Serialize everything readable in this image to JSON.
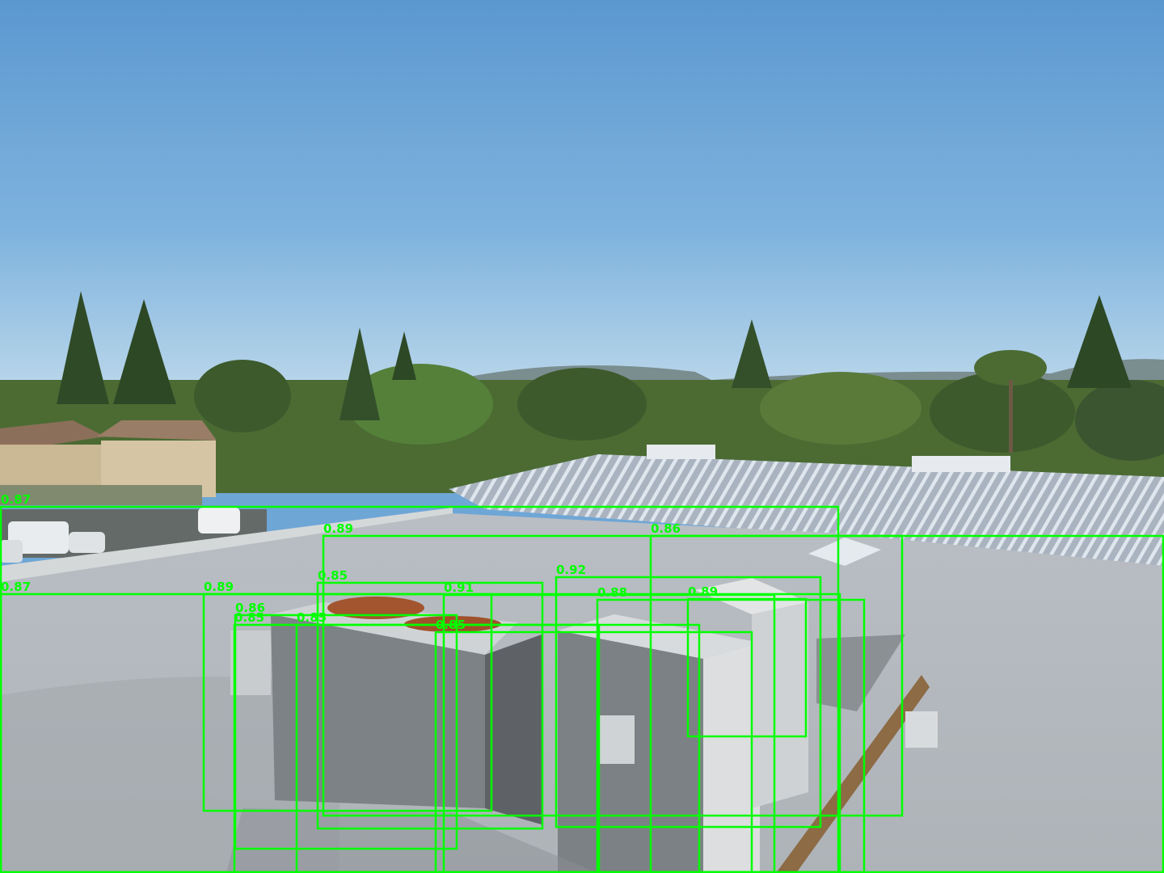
{
  "image": {
    "description_kind": "drone-photo-with-detection-overlay",
    "box_color": "#00ff00"
  },
  "detections": [
    {
      "label": "0.87"
    },
    {
      "label": "0.89"
    },
    {
      "label": "0.86"
    },
    {
      "label": "0.87"
    },
    {
      "label": "0.89"
    },
    {
      "label": "0.85"
    },
    {
      "label": "0.91"
    },
    {
      "label": "0.92"
    },
    {
      "label": "0.88"
    },
    {
      "label": "0.89"
    },
    {
      "label": "0.86"
    },
    {
      "label": "0.85"
    },
    {
      "label": "0.85"
    },
    {
      "label": "0.85"
    }
  ]
}
